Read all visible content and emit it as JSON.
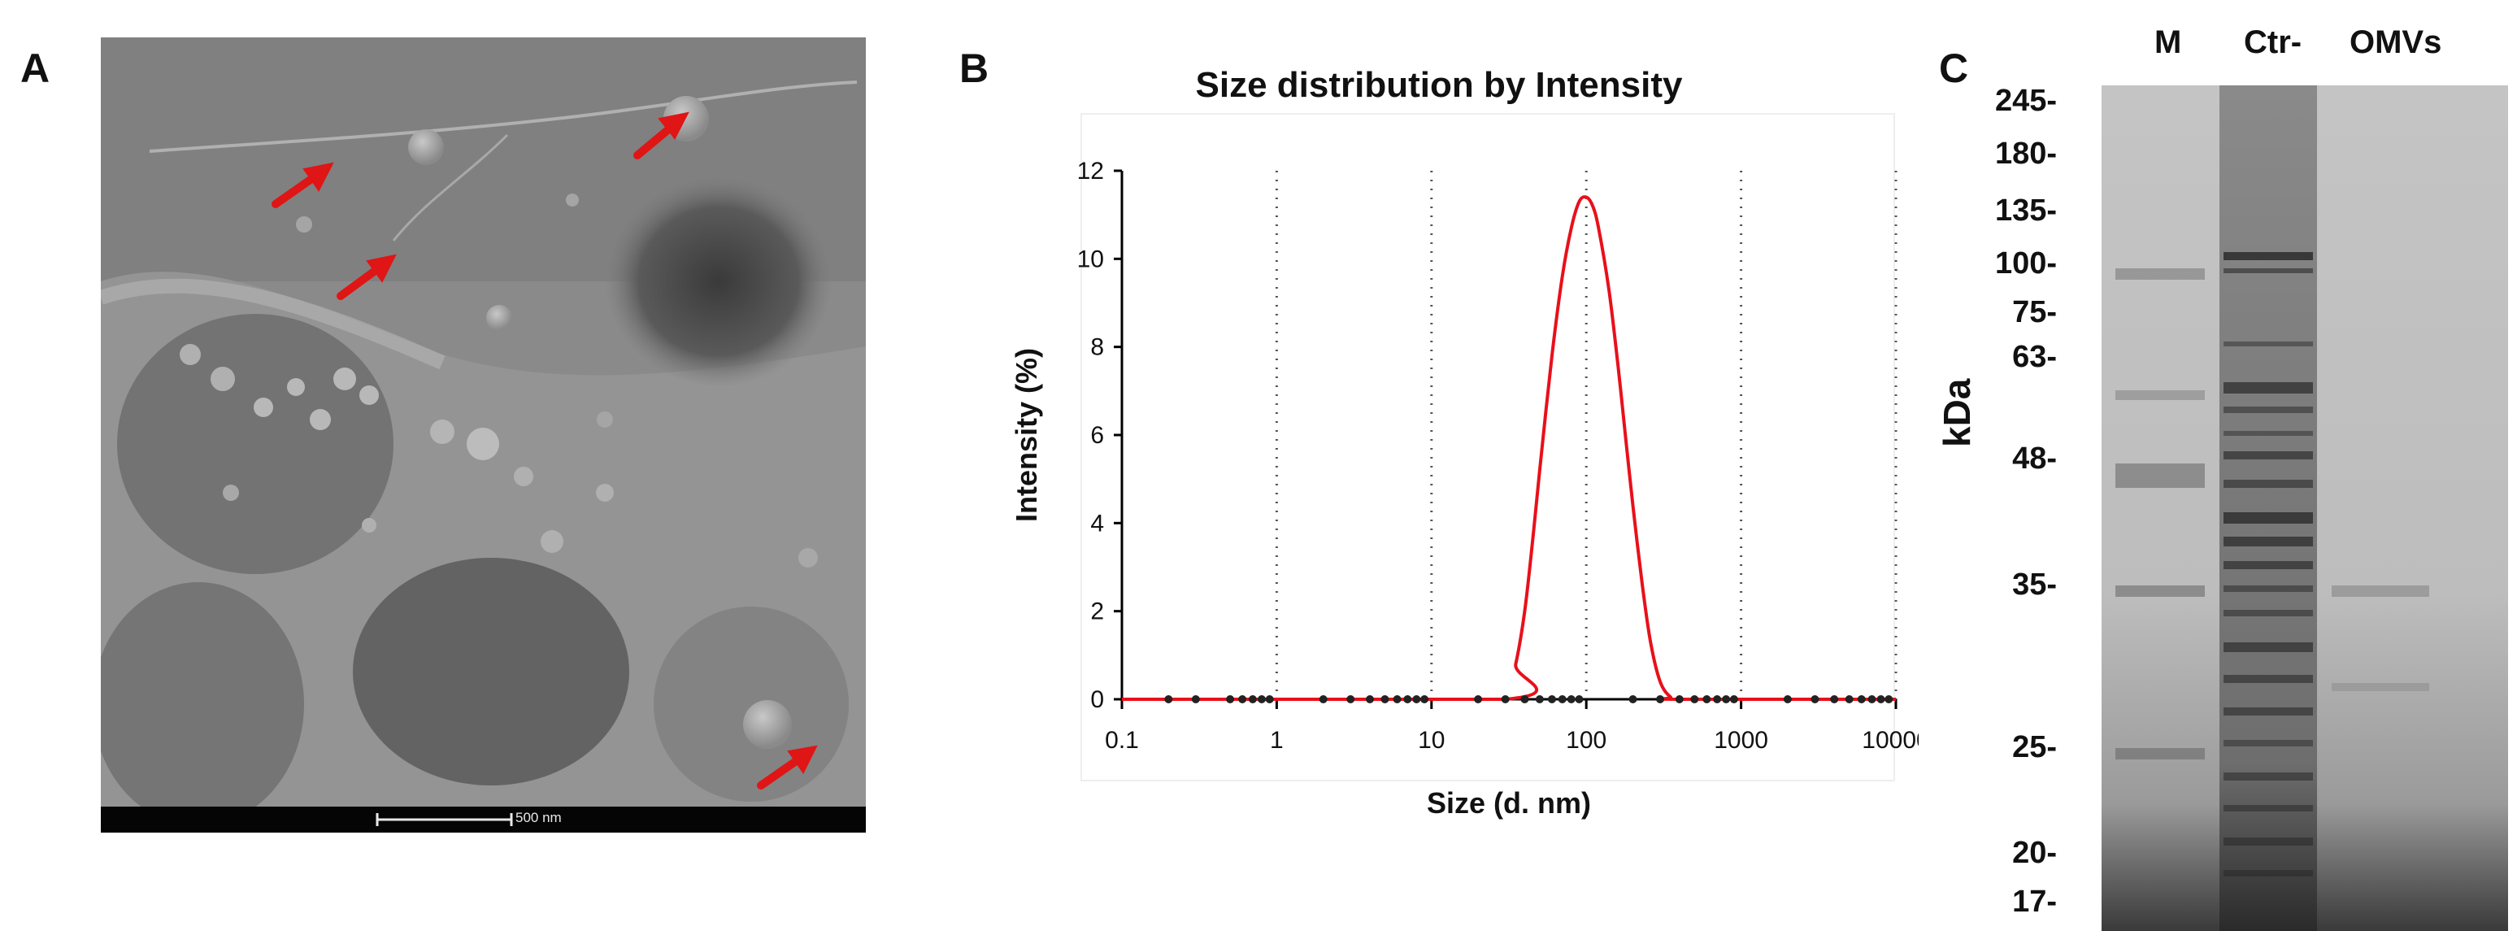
{
  "panels": {
    "a": {
      "letter": "A",
      "scalebar_label": "500 nm"
    },
    "b": {
      "letter": "B"
    },
    "c": {
      "letter": "C"
    }
  },
  "chart_data": {
    "type": "line",
    "title": "Size distribution by Intensity",
    "xlabel": "Size (d. nm)",
    "ylabel": "Intensity (%)",
    "xscale": "log",
    "xlim": [
      0.1,
      10000
    ],
    "ylim": [
      0,
      12
    ],
    "xticks": [
      "0.1",
      "1",
      "10",
      "100",
      "1000",
      "10000"
    ],
    "yticks": [
      "0",
      "2",
      "4",
      "6",
      "8",
      "10",
      "12"
    ],
    "grid": "vertical dotted at decades",
    "series": [
      {
        "color": "#e8101a",
        "x": [
          0.1,
          30,
          35,
          40,
          45,
          50,
          60,
          70,
          80,
          90,
          100,
          110,
          120,
          140,
          160,
          180,
          200,
          230,
          260,
          300,
          350,
          400,
          10000
        ],
        "y": [
          0,
          0,
          0.8,
          2.0,
          3.6,
          5.2,
          7.8,
          9.6,
          10.7,
          11.3,
          11.4,
          11.2,
          10.7,
          9.3,
          7.6,
          5.9,
          4.4,
          2.6,
          1.3,
          0.4,
          0.05,
          0,
          0
        ]
      }
    ],
    "markers_x": [
      0.2,
      0.3,
      0.5,
      0.6,
      0.7,
      0.8,
      0.9,
      2,
      3,
      4,
      5,
      6,
      7,
      8,
      9,
      20,
      30,
      40,
      50,
      60,
      70,
      80,
      90,
      200,
      300,
      400,
      500,
      600,
      700,
      800,
      900,
      2000,
      3000,
      4000,
      5000,
      6000,
      7000,
      8000,
      9000
    ]
  },
  "gel": {
    "lanes": [
      "M",
      "Ctr-",
      "OMVs"
    ],
    "axis_label": "kDa",
    "markers": [
      "245-",
      "180-",
      "135-",
      "100-",
      "75-",
      "63-",
      "48-",
      "35-",
      "25-",
      "20-",
      "17-"
    ]
  }
}
